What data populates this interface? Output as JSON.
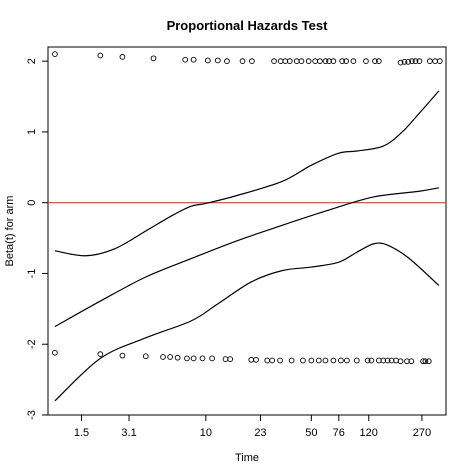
{
  "chart_data": {
    "type": "scatter",
    "title": "Proportional Hazards Test",
    "xlabel": "Time",
    "ylabel": "Beta(t) for arm",
    "xlim": [
      0.9,
      390
    ],
    "ylim": [
      -3,
      2.2
    ],
    "x_scale": "log",
    "x_ticks": [
      {
        "value": 1.5,
        "label": "1.5"
      },
      {
        "value": 3.1,
        "label": "3.1"
      },
      {
        "value": 10,
        "label": "10"
      },
      {
        "value": 23,
        "label": "23"
      },
      {
        "value": 50,
        "label": "50"
      },
      {
        "value": 76,
        "label": "76"
      },
      {
        "value": 120,
        "label": "120"
      },
      {
        "value": 270,
        "label": "270"
      }
    ],
    "y_ticks": [
      {
        "value": 2,
        "label": "2"
      },
      {
        "value": 1,
        "label": "1"
      },
      {
        "value": 0,
        "label": "0"
      },
      {
        "value": -1,
        "label": "-1"
      },
      {
        "value": -2,
        "label": "-2"
      },
      {
        "value": -3,
        "label": "-3"
      }
    ],
    "reference_line": {
      "y": 0,
      "color": "#e8392b"
    },
    "grid": false,
    "residuals_upper": [
      [
        1.0,
        2.1
      ],
      [
        2.0,
        2.08
      ],
      [
        2.8,
        2.06
      ],
      [
        4.5,
        2.04
      ],
      [
        7.3,
        2.02
      ],
      [
        8.3,
        2.02
      ],
      [
        10.3,
        2.01
      ],
      [
        12.0,
        2.01
      ],
      [
        13.8,
        2.0
      ],
      [
        17.5,
        2.0
      ],
      [
        20.2,
        2.0
      ],
      [
        28.3,
        2.0
      ],
      [
        31.3,
        2.0
      ],
      [
        33.6,
        2.0
      ],
      [
        36.0,
        2.0
      ],
      [
        40.0,
        2.0
      ],
      [
        43.0,
        2.0
      ],
      [
        48.0,
        2.0
      ],
      [
        53.0,
        2.0
      ],
      [
        57.0,
        2.0
      ],
      [
        62.0,
        2.0
      ],
      [
        65.5,
        2.0
      ],
      [
        70.0,
        2.0
      ],
      [
        80.0,
        2.0
      ],
      [
        85.0,
        2.0
      ],
      [
        95.0,
        2.0
      ],
      [
        115.0,
        2.0
      ],
      [
        132.0,
        2.0
      ],
      [
        140.0,
        2.0
      ],
      [
        195.0,
        1.98
      ],
      [
        207.0,
        1.99
      ],
      [
        219.0,
        1.99
      ],
      [
        232.0,
        2.0
      ],
      [
        245.0,
        2.0
      ],
      [
        260.0,
        2.0
      ],
      [
        305.0,
        2.0
      ],
      [
        330.0,
        2.0
      ],
      [
        355.0,
        2.0
      ]
    ],
    "residuals_lower": [
      [
        1.0,
        -2.12
      ],
      [
        2.0,
        -2.14
      ],
      [
        2.8,
        -2.16
      ],
      [
        4.0,
        -2.17
      ],
      [
        5.2,
        -2.18
      ],
      [
        5.8,
        -2.18
      ],
      [
        6.5,
        -2.19
      ],
      [
        7.5,
        -2.2
      ],
      [
        8.3,
        -2.2
      ],
      [
        9.5,
        -2.2
      ],
      [
        11.0,
        -2.2
      ],
      [
        13.5,
        -2.21
      ],
      [
        14.5,
        -2.21
      ],
      [
        20.0,
        -2.22
      ],
      [
        21.5,
        -2.22
      ],
      [
        25.5,
        -2.23
      ],
      [
        27.5,
        -2.23
      ],
      [
        31.0,
        -2.23
      ],
      [
        37.0,
        -2.23
      ],
      [
        44.0,
        -2.23
      ],
      [
        50.0,
        -2.23
      ],
      [
        56.0,
        -2.23
      ],
      [
        62.0,
        -2.23
      ],
      [
        70.0,
        -2.23
      ],
      [
        78.5,
        -2.23
      ],
      [
        86.0,
        -2.23
      ],
      [
        100.0,
        -2.23
      ],
      [
        118.0,
        -2.23
      ],
      [
        125.0,
        -2.23
      ],
      [
        140.0,
        -2.23
      ],
      [
        150.0,
        -2.23
      ],
      [
        160.0,
        -2.23
      ],
      [
        170.0,
        -2.23
      ],
      [
        182.0,
        -2.23
      ],
      [
        195.0,
        -2.24
      ],
      [
        215.0,
        -2.24
      ],
      [
        230.0,
        -2.24
      ],
      [
        275.0,
        -2.24
      ],
      [
        285.0,
        -2.24
      ],
      [
        300.0,
        -2.24
      ]
    ],
    "fit": [
      [
        1.0,
        -1.75
      ],
      [
        2.0,
        -1.39
      ],
      [
        4.0,
        -1.05
      ],
      [
        8.0,
        -0.79
      ],
      [
        16.0,
        -0.54
      ],
      [
        32.0,
        -0.32
      ],
      [
        64.0,
        -0.11
      ],
      [
        128.0,
        0.08
      ],
      [
        256.0,
        0.16
      ],
      [
        350.0,
        0.21
      ]
    ],
    "ci_upper": [
      [
        1.0,
        -0.68
      ],
      [
        1.6,
        -0.75
      ],
      [
        2.5,
        -0.65
      ],
      [
        4.0,
        -0.4
      ],
      [
        6.0,
        -0.18
      ],
      [
        8.0,
        -0.05
      ],
      [
        10.0,
        -0.01
      ],
      [
        16.0,
        0.1
      ],
      [
        32.0,
        0.3
      ],
      [
        50.0,
        0.53
      ],
      [
        76.0,
        0.7
      ],
      [
        100.0,
        0.73
      ],
      [
        150.0,
        0.8
      ],
      [
        200.0,
        1.0
      ],
      [
        256.0,
        1.25
      ],
      [
        350.0,
        1.58
      ]
    ],
    "ci_lower": [
      [
        1.0,
        -2.8
      ],
      [
        2.0,
        -2.2
      ],
      [
        4.0,
        -1.91
      ],
      [
        8.0,
        -1.67
      ],
      [
        12.0,
        -1.43
      ],
      [
        20.0,
        -1.12
      ],
      [
        32.0,
        -0.96
      ],
      [
        50.0,
        -0.91
      ],
      [
        76.0,
        -0.84
      ],
      [
        100.0,
        -0.7
      ],
      [
        130.0,
        -0.58
      ],
      [
        160.0,
        -0.6
      ],
      [
        220.0,
        -0.78
      ],
      [
        350.0,
        -1.17
      ]
    ]
  }
}
